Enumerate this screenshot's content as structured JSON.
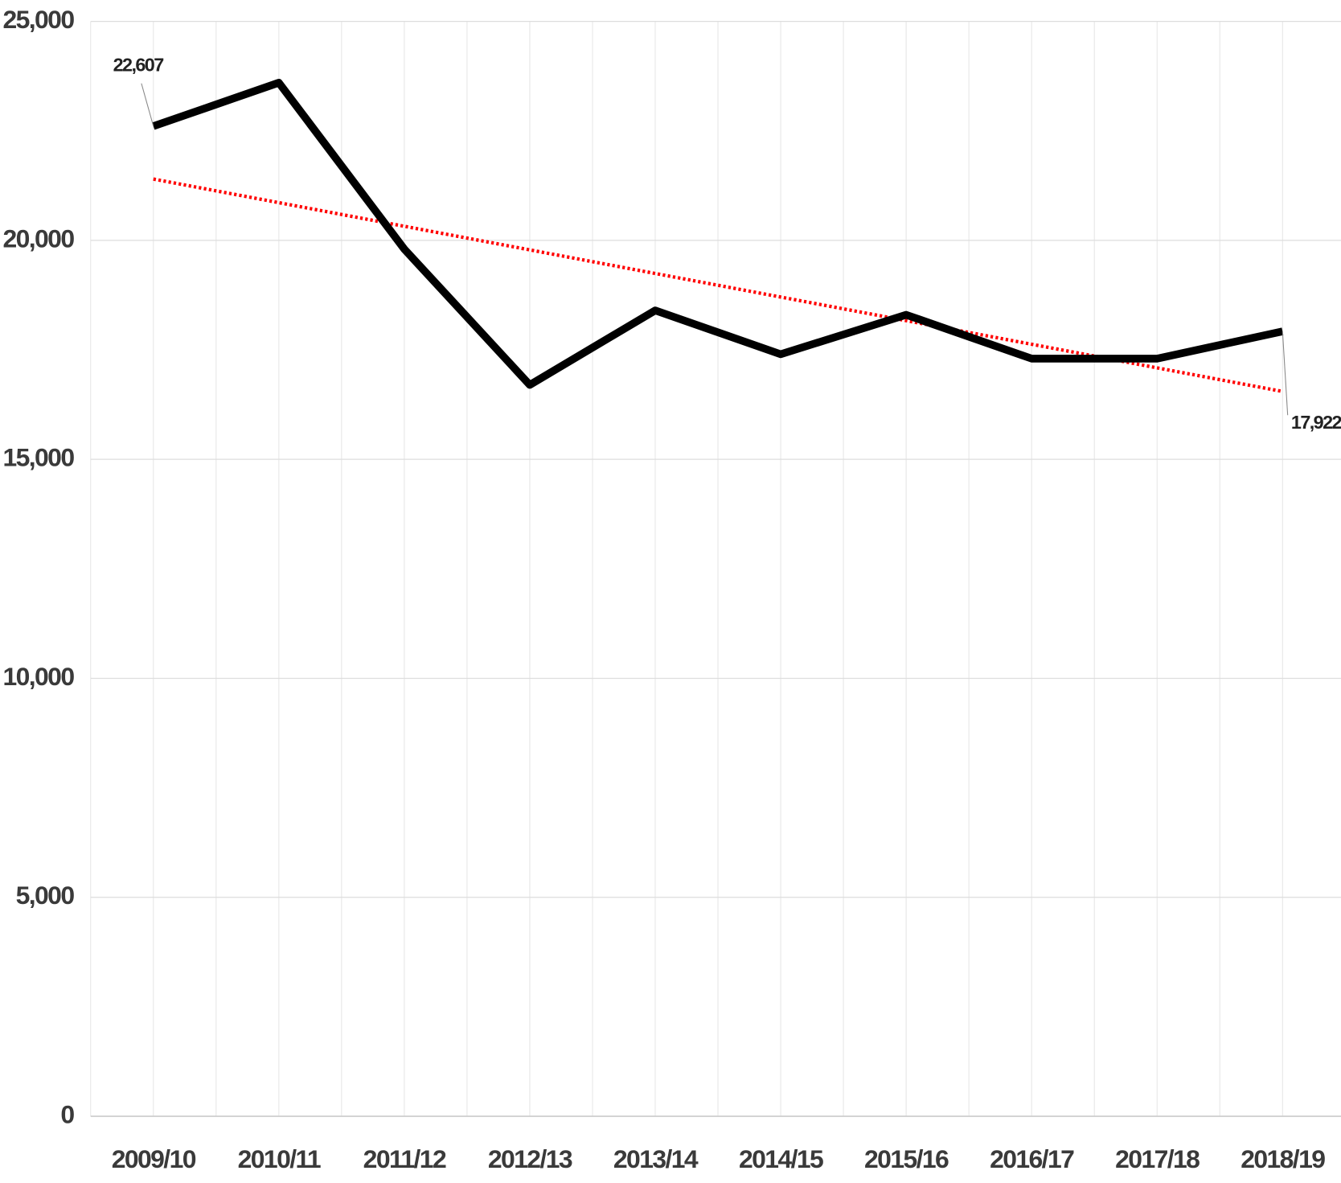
{
  "chart_data": {
    "type": "line",
    "categories": [
      "2009/10",
      "2010/11",
      "2011/12",
      "2012/13",
      "2013/14",
      "2014/15",
      "2015/16",
      "2016/17",
      "2017/18",
      "2018/19"
    ],
    "series": [
      {
        "color": "#000000",
        "values": [
          22607,
          23600,
          19800,
          16700,
          18400,
          17400,
          18300,
          17300,
          17300,
          17922
        ],
        "value_labels": [
          "22,607",
          null,
          null,
          null,
          null,
          null,
          null,
          null,
          null,
          "17,922"
        ]
      },
      {
        "color": "#ff0000",
        "dotted": true,
        "values": [
          21400,
          20861,
          20322,
          19783,
          19244,
          18706,
          18167,
          17628,
          17089,
          16550
        ]
      }
    ],
    "ylim": [
      0,
      25000
    ],
    "yticks": [
      0,
      {
        "value": 5000,
        "label": "5,000"
      },
      {
        "value": 10000,
        "label": "10,000"
      },
      {
        "value": 15000,
        "label": "15,000"
      },
      {
        "value": 20000,
        "label": "20,000"
      },
      {
        "value": 25000,
        "label": "25,000"
      }
    ],
    "grid": true
  }
}
